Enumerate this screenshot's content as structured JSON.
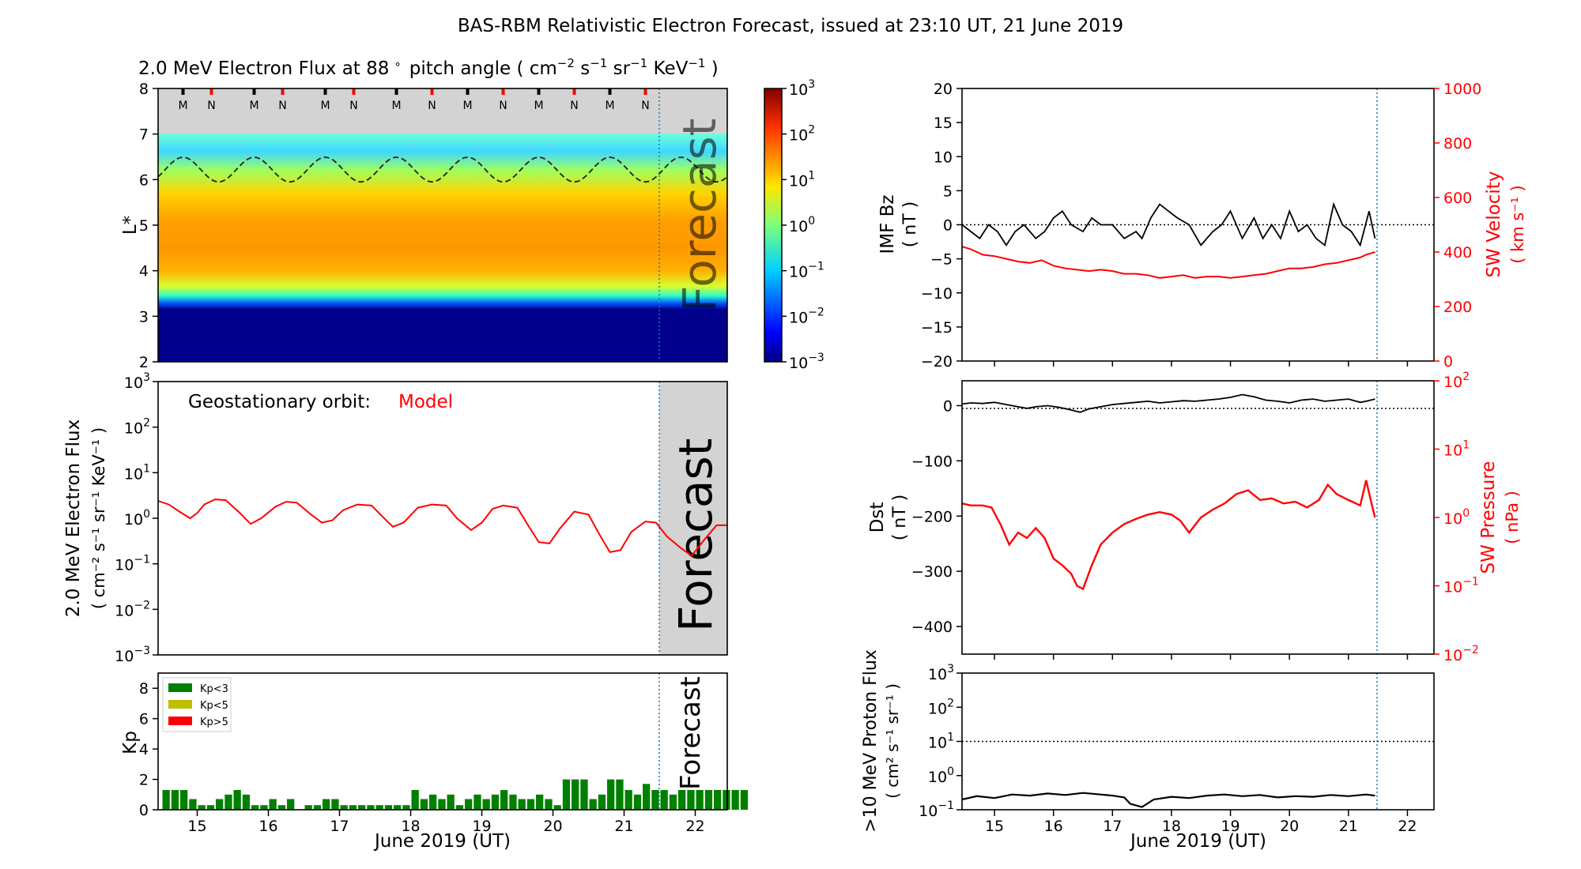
{
  "figure": {
    "title": "BAS-RBM Relativistic Electron Forecast, issued at 23:10 UT, 21 June 2019",
    "forecast_watermark": "Forecast",
    "date_axis_label": "June 2019 (UT)"
  },
  "colors": {
    "model": "#ff0000",
    "kp_low": "#008000",
    "kp_mid": "#bfbf00",
    "kp_high": "#ff0000",
    "forecast_shade": "#d3d3d3",
    "forecast_line": "#1f77b4"
  },
  "chart_data": [
    {
      "id": "flux_map",
      "type": "heatmap",
      "title_main": "2.0 MeV Electron Flux at 88",
      "title_deg": "∘",
      "title_units": "pitch angle ( cm",
      "title_exp1": "−2",
      "title_s": " s",
      "title_exp2": "−1",
      "title_sr": " sr",
      "title_exp3": "−1",
      "title_kev": " KeV",
      "title_exp4": "−1",
      "title_close": " )",
      "ylabel": "L*",
      "ylim": [
        2,
        8
      ],
      "yticks": [
        "2",
        "3",
        "4",
        "5",
        "6",
        "7",
        "8"
      ],
      "xlim": [
        14.45,
        22.45
      ],
      "forecast_start": 21.45,
      "colorbar": {
        "scale": "log",
        "range": [
          -3,
          3
        ],
        "ticks": [
          "10",
          "10",
          "10",
          "10",
          "10",
          "10",
          "10"
        ],
        "exponents": [
          "−3",
          "−2",
          "−1",
          "0",
          "1",
          "2",
          "3"
        ]
      },
      "magnetopause_markers": [
        {
          "x": 14.8,
          "label": "M"
        },
        {
          "x": 15.2,
          "label": "N"
        },
        {
          "x": 15.8,
          "label": "M"
        },
        {
          "x": 16.2,
          "label": "N"
        },
        {
          "x": 16.8,
          "label": "M"
        },
        {
          "x": 17.2,
          "label": "N"
        },
        {
          "x": 17.8,
          "label": "M"
        },
        {
          "x": 18.3,
          "label": "N"
        },
        {
          "x": 18.8,
          "label": "M"
        },
        {
          "x": 19.3,
          "label": "N"
        },
        {
          "x": 19.8,
          "label": "M"
        },
        {
          "x": 20.3,
          "label": "N"
        },
        {
          "x": 20.8,
          "label": "M"
        },
        {
          "x": 21.3,
          "label": "N"
        }
      ],
      "geo_orbit_trace": "dashed L* of geostationary orbit, oscillating 5.95–6.5"
    },
    {
      "id": "geo_flux",
      "type": "line",
      "label_text": "Geostationary orbit:",
      "label_model": "Model",
      "ylabel_line1": "2.0 MeV Electron Flux",
      "ylabel_line2": "( cm⁻² s⁻¹ sr⁻¹ KeV⁻¹ )",
      "yscale": "log",
      "ylim_exp": [
        -3,
        3
      ],
      "ytick_base": "10",
      "ytick_exponents": [
        "−3",
        "−2",
        "−1",
        "0",
        "1",
        "2",
        "3"
      ],
      "series": [
        {
          "x": [
            14.45,
            14.6,
            14.75,
            14.9,
            15.0,
            15.1,
            15.25,
            15.4,
            15.6,
            15.75,
            15.9,
            16.1,
            16.25,
            16.4,
            16.6,
            16.75,
            16.9,
            17.05,
            17.25,
            17.45,
            17.6,
            17.75,
            17.9,
            18.1,
            18.3,
            18.5,
            18.65,
            18.85,
            19.0,
            19.15,
            19.3,
            19.5,
            19.65,
            19.8,
            19.95,
            20.1,
            20.3,
            20.5,
            20.65,
            20.8,
            20.95,
            21.1,
            21.3,
            21.45,
            21.6,
            21.8,
            21.95,
            22.1,
            22.3,
            22.45
          ],
          "y": [
            2.4,
            2.0,
            1.4,
            1.0,
            1.3,
            2.0,
            2.6,
            2.5,
            1.3,
            0.75,
            1.0,
            1.8,
            2.3,
            2.2,
            1.2,
            0.8,
            0.9,
            1.5,
            2.0,
            1.9,
            1.1,
            0.65,
            0.8,
            1.7,
            2.0,
            1.9,
            1.0,
            0.55,
            0.8,
            1.6,
            1.9,
            1.7,
            0.7,
            0.3,
            0.28,
            0.6,
            1.4,
            1.2,
            0.45,
            0.18,
            0.2,
            0.5,
            0.85,
            0.8,
            0.4,
            0.22,
            0.15,
            0.3,
            0.7,
            0.7
          ]
        }
      ]
    },
    {
      "id": "kp",
      "type": "bar",
      "ylabel": "Kp",
      "ylim": [
        0,
        9
      ],
      "yticks": [
        "0",
        "2",
        "4",
        "6",
        "8"
      ],
      "legend": [
        "Kp<3",
        "Kp<5",
        "Kp>5"
      ],
      "bar_width": 0.125,
      "x_start": 14.5,
      "values": [
        1.3,
        1.3,
        1.3,
        0.7,
        0.3,
        0.3,
        0.7,
        1.0,
        1.3,
        1.0,
        0.3,
        0.3,
        0.7,
        0.3,
        0.7,
        0,
        0.3,
        0.3,
        0.7,
        0.7,
        0.3,
        0.3,
        0.3,
        0.3,
        0.3,
        0.3,
        0.3,
        0.3,
        1.3,
        0.7,
        1.0,
        0.7,
        1.0,
        0.3,
        0.7,
        1.0,
        0.7,
        1.0,
        1.3,
        1.0,
        0.7,
        0.7,
        1.0,
        0.7,
        0.3,
        2.0,
        2.0,
        2.0,
        0.7,
        1.0,
        2.0,
        2.0,
        1.3,
        1.0,
        1.7,
        1.3,
        1.3,
        1.0,
        1.3,
        1.3,
        1.3,
        1.3,
        1.3,
        1.3,
        1.3,
        1.3
      ]
    },
    {
      "id": "imf",
      "type": "line",
      "ylabel_line1": "IMF Bz",
      "ylabel_line2": "( nT )",
      "ylim": [
        -20,
        20
      ],
      "yticks": [
        "−20",
        "−15",
        "−10",
        "−5",
        "0",
        "5",
        "10",
        "15",
        "20"
      ],
      "y2label_line1": "SW Velocity",
      "y2label_line2": "( km s⁻¹ )",
      "y2lim": [
        0,
        1000
      ],
      "y2ticks": [
        "0",
        "200",
        "400",
        "600",
        "800",
        "1000"
      ],
      "series": [
        {
          "name": "",
          "x": [
            14.45,
            14.6,
            14.75,
            14.9,
            15.05,
            15.2,
            15.35,
            15.5,
            15.7,
            15.85,
            16.0,
            16.15,
            16.3,
            16.5,
            16.65,
            16.8,
            17.0,
            17.2,
            17.4,
            17.5,
            17.65,
            17.8,
            17.95,
            18.1,
            18.3,
            18.5,
            18.7,
            18.85,
            19.0,
            19.2,
            19.4,
            19.55,
            19.7,
            19.85,
            20.0,
            20.15,
            20.3,
            20.45,
            20.6,
            20.75,
            20.9,
            21.05,
            21.2,
            21.35,
            21.45
          ],
          "y": [
            0,
            -1,
            -2,
            0,
            -1,
            -3,
            -1,
            0,
            -2,
            -1,
            1,
            2,
            0,
            -1,
            1,
            0,
            0,
            -2,
            -1,
            -2,
            1,
            3,
            2,
            1,
            0,
            -3,
            -1,
            0,
            2,
            -2,
            1,
            -2,
            0,
            -2,
            2,
            -1,
            0,
            -2,
            -3,
            3,
            0,
            -1,
            -3,
            2,
            -2
          ]
        },
        {
          "name": "",
          "x": [
            14.45,
            14.6,
            14.8,
            15.0,
            15.2,
            15.4,
            15.6,
            15.8,
            16.0,
            16.2,
            16.4,
            16.6,
            16.8,
            17.0,
            17.2,
            17.4,
            17.6,
            17.8,
            18.0,
            18.2,
            18.4,
            18.6,
            18.8,
            19.0,
            19.2,
            19.4,
            19.6,
            19.8,
            20.0,
            20.2,
            20.4,
            20.6,
            20.8,
            21.0,
            21.2,
            21.3,
            21.45
          ],
          "y": [
            420,
            410,
            390,
            385,
            375,
            365,
            360,
            370,
            350,
            340,
            335,
            330,
            335,
            330,
            320,
            320,
            315,
            305,
            310,
            315,
            305,
            310,
            310,
            305,
            310,
            315,
            320,
            330,
            340,
            340,
            345,
            355,
            360,
            370,
            380,
            390,
            400
          ]
        }
      ]
    },
    {
      "id": "dst",
      "type": "line",
      "ylabel_line1": "Dst",
      "ylabel_line2": "( nT )",
      "ylim": [
        -450,
        45
      ],
      "yticks": [
        "−400",
        "−300",
        "−200",
        "−100",
        "0"
      ],
      "y2label_line1": "SW Pressure",
      "y2label_line2": "( nPa )",
      "y2lim_exp": [
        -2,
        2
      ],
      "y2tick_base": "10",
      "y2tick_exponents": [
        "−2",
        "−1",
        "0",
        "1",
        "2"
      ],
      "series": [
        {
          "name": "",
          "x": [
            14.45,
            14.6,
            14.8,
            15.0,
            15.2,
            15.4,
            15.55,
            15.7,
            15.9,
            16.1,
            16.3,
            16.45,
            16.6,
            16.8,
            17.0,
            17.2,
            17.4,
            17.6,
            17.8,
            18.0,
            18.2,
            18.4,
            18.6,
            18.8,
            19.0,
            19.2,
            19.4,
            19.6,
            19.8,
            20.0,
            20.2,
            20.4,
            20.6,
            20.8,
            21.0,
            21.2,
            21.3,
            21.45
          ],
          "y": [
            3,
            5,
            4,
            6,
            2,
            -2,
            -5,
            -2,
            0,
            -3,
            -8,
            -12,
            -6,
            -2,
            2,
            4,
            6,
            8,
            5,
            7,
            9,
            8,
            10,
            12,
            15,
            20,
            16,
            10,
            8,
            5,
            10,
            12,
            8,
            10,
            12,
            6,
            8,
            12
          ]
        },
        {
          "name": "",
          "x": [
            14.45,
            14.6,
            14.8,
            14.95,
            15.1,
            15.25,
            15.4,
            15.55,
            15.7,
            15.85,
            16.0,
            16.15,
            16.3,
            16.4,
            16.5,
            16.65,
            16.8,
            17.0,
            17.2,
            17.4,
            17.6,
            17.8,
            18.0,
            18.15,
            18.3,
            18.5,
            18.7,
            18.9,
            19.1,
            19.3,
            19.5,
            19.7,
            19.9,
            20.1,
            20.3,
            20.5,
            20.65,
            20.8,
            21.0,
            21.2,
            21.3,
            21.4,
            21.45
          ],
          "y": [
            1.6,
            1.5,
            1.5,
            1.4,
            0.8,
            0.4,
            0.6,
            0.5,
            0.7,
            0.5,
            0.25,
            0.2,
            0.15,
            0.1,
            0.09,
            0.2,
            0.4,
            0.6,
            0.8,
            0.95,
            1.1,
            1.2,
            1.1,
            0.9,
            0.6,
            1.0,
            1.3,
            1.6,
            2.2,
            2.5,
            1.8,
            1.9,
            1.6,
            1.7,
            1.4,
            1.8,
            3.0,
            2.2,
            1.8,
            1.5,
            3.5,
            1.5,
            1.0
          ]
        }
      ]
    },
    {
      "id": "proton",
      "type": "line",
      "ylabel_line1": ">10 MeV Proton Flux",
      "ylabel_line2": "( cm² s⁻¹ sr⁻¹ )",
      "yscale": "log",
      "ylim_exp": [
        -1,
        3
      ],
      "ytick_base": "10",
      "ytick_exponents": [
        "−1",
        "0",
        "1",
        "2",
        "3"
      ],
      "threshold": 10,
      "series": [
        {
          "name": "",
          "x": [
            14.45,
            14.7,
            15.0,
            15.3,
            15.6,
            15.9,
            16.2,
            16.5,
            16.8,
            17.0,
            17.2,
            17.3,
            17.5,
            17.7,
            18.0,
            18.3,
            18.6,
            18.9,
            19.2,
            19.5,
            19.8,
            20.1,
            20.4,
            20.7,
            21.0,
            21.3,
            21.45
          ],
          "y": [
            0.2,
            0.25,
            0.22,
            0.28,
            0.26,
            0.3,
            0.27,
            0.31,
            0.28,
            0.26,
            0.23,
            0.15,
            0.12,
            0.2,
            0.24,
            0.22,
            0.26,
            0.28,
            0.25,
            0.27,
            0.23,
            0.25,
            0.24,
            0.27,
            0.25,
            0.28,
            0.26
          ]
        }
      ]
    },
    {
      "id": "date_axis",
      "type": "table",
      "xticks": [
        "15",
        "16",
        "17",
        "18",
        "19",
        "20",
        "21",
        "22"
      ]
    }
  ]
}
